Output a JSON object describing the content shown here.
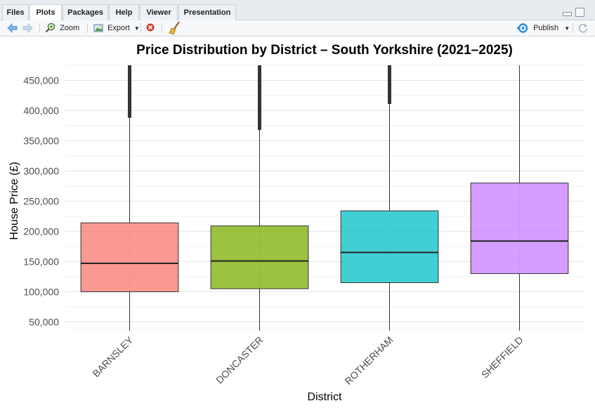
{
  "tabs": [
    {
      "label": "Files",
      "active": false
    },
    {
      "label": "Plots",
      "active": true
    },
    {
      "label": "Packages",
      "active": false
    },
    {
      "label": "Help",
      "active": false
    },
    {
      "label": "Viewer",
      "active": false
    },
    {
      "label": "Presentation",
      "active": false
    }
  ],
  "toolbar": {
    "zoom_label": "Zoom",
    "export_label": "Export",
    "publish_label": "Publish"
  },
  "colors": {
    "barnsley": "#f8766d",
    "doncaster": "#7cae00",
    "rotherham": "#00bfc4",
    "sheffield": "#c77cff",
    "accent": "#2a8fd6"
  },
  "chart_data": {
    "type": "boxplot",
    "title": "Price Distribution by District – South Yorkshire (2021–2025)",
    "xlabel": "District",
    "ylabel": "House Price (£)",
    "ylim": [
      40000,
      475000
    ],
    "yticks": [
      50000,
      100000,
      150000,
      200000,
      250000,
      300000,
      350000,
      400000,
      450000
    ],
    "ytick_labels": [
      "50,000",
      "100,000",
      "150,000",
      "200,000",
      "250,000",
      "300,000",
      "350,000",
      "400,000",
      "450,000"
    ],
    "grid": true,
    "categories": [
      "BARNSLEY",
      "DONCASTER",
      "ROTHERHAM",
      "SHEFFIELD"
    ],
    "boxes": [
      {
        "name": "BARNSLEY",
        "whisker_low": 40000,
        "q1": 100000,
        "median": 147000,
        "q3": 214000,
        "whisker_high": 388000,
        "outliers_from": 388000,
        "outliers_to": 475000
      },
      {
        "name": "DONCASTER",
        "whisker_low": 40000,
        "q1": 105000,
        "median": 151000,
        "q3": 209000,
        "whisker_high": 368000,
        "outliers_from": 368000,
        "outliers_to": 475000
      },
      {
        "name": "ROTHERHAM",
        "whisker_low": 40000,
        "q1": 115000,
        "median": 165000,
        "q3": 234000,
        "whisker_high": 411000,
        "outliers_from": 411000,
        "outliers_to": 475000
      },
      {
        "name": "SHEFFIELD",
        "whisker_low": 40000,
        "q1": 130000,
        "median": 184000,
        "q3": 280000,
        "whisker_high": 475000,
        "outliers_from": null,
        "outliers_to": null
      }
    ]
  }
}
